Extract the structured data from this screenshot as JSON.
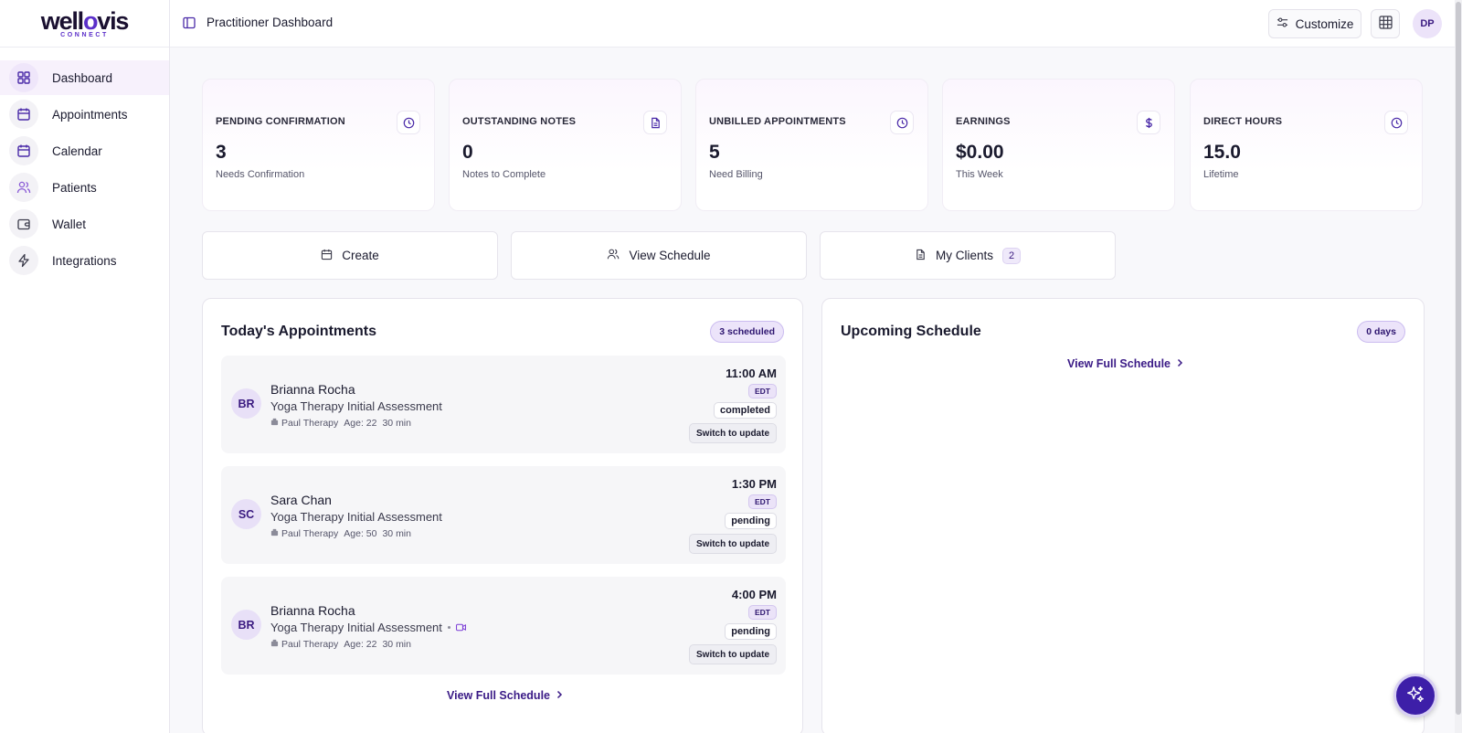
{
  "brand": {
    "name_start": "well",
    "name_mid": "o",
    "name_end": "vis",
    "tagline": "CONNECT"
  },
  "sidebar": {
    "items": [
      {
        "label": "Dashboard",
        "icon": "dashboard-grid-icon"
      },
      {
        "label": "Appointments",
        "icon": "calendar-icon"
      },
      {
        "label": "Calendar",
        "icon": "calendar-icon"
      },
      {
        "label": "Patients",
        "icon": "users-icon"
      },
      {
        "label": "Wallet",
        "icon": "wallet-icon"
      },
      {
        "label": "Integrations",
        "icon": "lightning-icon"
      }
    ],
    "active_index": 0
  },
  "header": {
    "title": "Practitioner Dashboard",
    "customize_label": "Customize",
    "user_initials": "DP"
  },
  "stats": [
    {
      "label": "PENDING CONFIRMATION",
      "value": "3",
      "sub": "Needs Confirmation",
      "icon": "clock-icon"
    },
    {
      "label": "OUTSTANDING NOTES",
      "value": "0",
      "sub": "Notes to Complete",
      "icon": "document-icon"
    },
    {
      "label": "UNBILLED APPOINTMENTS",
      "value": "5",
      "sub": "Need Billing",
      "icon": "clock-icon"
    },
    {
      "label": "EARNINGS",
      "value": "$0.00",
      "sub": "This Week",
      "icon": "dollar-icon"
    },
    {
      "label": "DIRECT HOURS",
      "value": "15.0",
      "sub": "Lifetime",
      "icon": "clock-icon"
    }
  ],
  "actions": {
    "create": "Create",
    "view_schedule": "View Schedule",
    "my_clients": "My Clients",
    "my_clients_count": "2"
  },
  "today": {
    "title": "Today's Appointments",
    "badge": "3 scheduled",
    "view_full": "View Full Schedule",
    "appointments": [
      {
        "initials": "BR",
        "name": "Brianna Rocha",
        "type": "Yoga Therapy Initial Assessment",
        "practitioner": "Paul Therapy",
        "age": "Age: 22",
        "duration": "30 min",
        "time": "11:00 AM",
        "tz": "EDT",
        "status": "completed",
        "action": "Switch to update",
        "video": false
      },
      {
        "initials": "SC",
        "name": "Sara Chan",
        "type": "Yoga Therapy Initial Assessment",
        "practitioner": "Paul Therapy",
        "age": "Age: 50",
        "duration": "30 min",
        "time": "1:30 PM",
        "tz": "EDT",
        "status": "pending",
        "action": "Switch to update",
        "video": false
      },
      {
        "initials": "BR",
        "name": "Brianna Rocha",
        "type": "Yoga Therapy Initial Assessment",
        "practitioner": "Paul Therapy",
        "age": "Age: 22",
        "duration": "30 min",
        "time": "4:00 PM",
        "tz": "EDT",
        "status": "pending",
        "action": "Switch to update",
        "video": true
      }
    ]
  },
  "upcoming": {
    "title": "Upcoming Schedule",
    "badge": "0 days",
    "view_full": "View Full Schedule"
  },
  "colors": {
    "accent": "#3d1fa8",
    "accent_light": "#ece4fa",
    "link": "#3a1a86"
  }
}
